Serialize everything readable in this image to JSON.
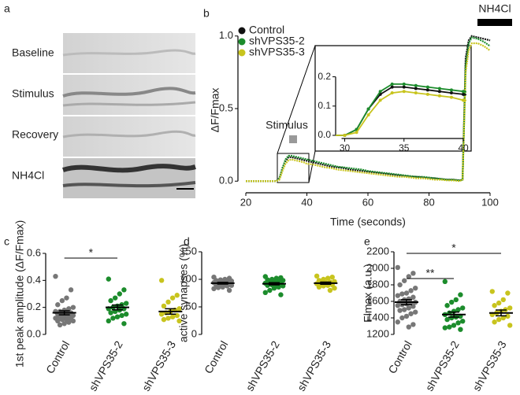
{
  "panel_labels": [
    "a",
    "b",
    "c",
    "d",
    "e"
  ],
  "image_panel": {
    "rows": [
      "Baseline",
      "Stimulus",
      "Recovery",
      "NH4Cl"
    ]
  },
  "chart_data": [
    {
      "type": "line",
      "xlabel": "Time (seconds)",
      "ylabel": "ΔF/Fmax",
      "annotations": [
        "Stimulus",
        "NH4Cl"
      ],
      "x": [
        20,
        22,
        24,
        26,
        28,
        30,
        31,
        32,
        33,
        34,
        35,
        36,
        37,
        38,
        39,
        40,
        42,
        44,
        46,
        48,
        50,
        52,
        54,
        56,
        58,
        60,
        62,
        64,
        66,
        68,
        70,
        72,
        74,
        76,
        78,
        80,
        82,
        84,
        86,
        88,
        90,
        91,
        92,
        93,
        94,
        96,
        98,
        100
      ],
      "series": [
        {
          "name": "Control",
          "color": "#111111",
          "values": [
            0,
            0,
            0,
            0,
            0,
            0,
            0.02,
            0.09,
            0.14,
            0.165,
            0.165,
            0.16,
            0.155,
            0.15,
            0.145,
            0.14,
            0.13,
            0.12,
            0.11,
            0.1,
            0.095,
            0.09,
            0.08,
            0.075,
            0.07,
            0.065,
            0.06,
            0.055,
            0.05,
            0.045,
            0.04,
            0.035,
            0.03,
            0.03,
            0.025,
            0.02,
            0.02,
            0.015,
            0.01,
            0.01,
            0.005,
            0.01,
            0.85,
            0.97,
            1.0,
            0.99,
            0.98,
            0.97
          ]
        },
        {
          "name": "shVPS35-2",
          "color": "#1c8c2c",
          "values": [
            0,
            0,
            0,
            0,
            0,
            0,
            0.02,
            0.09,
            0.15,
            0.175,
            0.175,
            0.17,
            0.165,
            0.16,
            0.155,
            0.15,
            0.14,
            0.13,
            0.12,
            0.11,
            0.1,
            0.095,
            0.09,
            0.085,
            0.08,
            0.07,
            0.065,
            0.06,
            0.055,
            0.05,
            0.045,
            0.04,
            0.035,
            0.03,
            0.03,
            0.025,
            0.02,
            0.015,
            0.01,
            0.01,
            0.005,
            0.01,
            0.8,
            0.95,
            0.99,
            0.98,
            0.96,
            0.93
          ]
        },
        {
          "name": "shVPS35-3",
          "color": "#c8c41e",
          "values": [
            0,
            0,
            0,
            0,
            0,
            0,
            0.01,
            0.07,
            0.12,
            0.145,
            0.15,
            0.145,
            0.14,
            0.135,
            0.13,
            0.12,
            0.115,
            0.105,
            0.095,
            0.09,
            0.08,
            0.075,
            0.07,
            0.065,
            0.06,
            0.055,
            0.05,
            0.045,
            0.04,
            0.035,
            0.03,
            0.03,
            0.025,
            0.02,
            0.02,
            0.015,
            0.01,
            0.01,
            0.005,
            0.005,
            0,
            0.01,
            0.75,
            0.9,
            0.95,
            0.95,
            0.93,
            0.9
          ]
        }
      ],
      "xlim": [
        20,
        100
      ],
      "xticks": [
        20,
        40,
        60,
        80,
        100
      ],
      "ylim": [
        -0.08,
        1.08
      ],
      "yticks": [
        {
          "value": 0,
          "label": "0.0"
        },
        {
          "value": 0.5,
          "label": "0.5"
        },
        {
          "value": 1,
          "label": "1.0"
        }
      ]
    },
    {
      "type": "inset",
      "xlim": [
        29.5,
        40
      ],
      "xticks": [
        30,
        35,
        40
      ],
      "ylim": [
        0,
        0.25
      ],
      "yticks": [
        {
          "value": 0,
          "label": "0.0"
        },
        {
          "value": 0.1,
          "label": "0.1"
        },
        {
          "value": 0.2,
          "label": "0.2"
        }
      ]
    },
    {
      "type": "strip",
      "ylabel": "1st peak amplitude (ΔF/Fmax)",
      "annotations": [
        "*"
      ],
      "categories": [
        "Control",
        "shVPS35-2",
        "shVPS35-3"
      ],
      "series": [
        {
          "color": "#777777",
          "values": [
            0.43,
            0.33,
            0.27,
            0.25,
            0.22,
            0.2,
            0.19,
            0.18,
            0.17,
            0.17,
            0.16,
            0.16,
            0.15,
            0.15,
            0.14,
            0.14,
            0.13,
            0.13,
            0.12,
            0.12,
            0.11,
            0.11,
            0.1,
            0.1,
            0.09,
            0.08,
            0.07
          ],
          "mean": 0.16,
          "sem": 0.015
        },
        {
          "color": "#1c8c2c",
          "values": [
            0.41,
            0.33,
            0.3,
            0.27,
            0.25,
            0.23,
            0.22,
            0.21,
            0.2,
            0.19,
            0.19,
            0.18,
            0.17,
            0.16,
            0.15,
            0.14,
            0.13,
            0.12,
            0.1,
            0.08
          ],
          "mean": 0.2,
          "sem": 0.018
        },
        {
          "color": "#c8c41e",
          "values": [
            0.4,
            0.29,
            0.27,
            0.24,
            0.21,
            0.19,
            0.18,
            0.17,
            0.16,
            0.15,
            0.14,
            0.13,
            0.12,
            0.11,
            0.1
          ],
          "mean": 0.17,
          "sem": 0.02
        }
      ],
      "ylim": [
        0,
        0.6
      ],
      "yticks": [
        {
          "value": 0,
          "label": "0.0"
        },
        {
          "value": 0.2,
          "label": "0.2"
        },
        {
          "value": 0.4,
          "label": "0.4"
        },
        {
          "value": 0.6,
          "label": "0.6"
        }
      ]
    },
    {
      "type": "strip",
      "ylabel": "active synapses (%)",
      "categories": [
        "Control",
        "shVPS35-2",
        "shVPS35-3"
      ],
      "series": [
        {
          "color": "#777777",
          "values": [
            104,
            102,
            100,
            99,
            98,
            97,
            96,
            95,
            95,
            94,
            93,
            92,
            91,
            90,
            89,
            88,
            86,
            85,
            83,
            80
          ],
          "mean": 93,
          "sem": 1.5
        },
        {
          "color": "#1c8c2c",
          "values": [
            105,
            103,
            102,
            100,
            99,
            98,
            96,
            95,
            94,
            93,
            92,
            91,
            90,
            89,
            88,
            86,
            84,
            80,
            76,
            72
          ],
          "mean": 92,
          "sem": 2
        },
        {
          "color": "#c8c41e",
          "values": [
            106,
            104,
            102,
            100,
            98,
            96,
            95,
            94,
            93,
            92,
            90,
            89,
            88,
            86,
            84,
            80
          ],
          "mean": 93,
          "sem": 2
        }
      ],
      "ylim": [
        0,
        150
      ],
      "yticks": [
        0,
        50,
        100,
        150
      ]
    },
    {
      "type": "strip",
      "ylabel": "Flmax (a.u.)",
      "annotations": [
        "**",
        "*"
      ],
      "categories": [
        "Control",
        "shVPS35-2",
        "shVPS35-3"
      ],
      "series": [
        {
          "color": "#777777",
          "values": [
            2010,
            1940,
            1900,
            1850,
            1800,
            1760,
            1730,
            1700,
            1690,
            1670,
            1650,
            1630,
            1620,
            1600,
            1590,
            1580,
            1570,
            1560,
            1550,
            1540,
            1520,
            1500,
            1490,
            1470,
            1450,
            1420,
            1400,
            1350,
            1320,
            1290
          ],
          "mean": 1590,
          "sem": 30
        },
        {
          "color": "#1c8c2c",
          "values": [
            1840,
            1680,
            1620,
            1590,
            1550,
            1520,
            1500,
            1480,
            1460,
            1440,
            1420,
            1410,
            1400,
            1380,
            1360,
            1340,
            1310,
            1290,
            1280,
            1260
          ],
          "mean": 1440,
          "sem": 30
        },
        {
          "color": "#c8c41e",
          "values": [
            1720,
            1700,
            1620,
            1580,
            1550,
            1520,
            1500,
            1480,
            1460,
            1440,
            1420,
            1400,
            1380,
            1350,
            1310
          ],
          "mean": 1460,
          "sem": 35
        }
      ],
      "ylim": [
        1200,
        2200
      ],
      "yticks": [
        1200,
        1400,
        1600,
        1800,
        2000,
        2200
      ]
    }
  ]
}
